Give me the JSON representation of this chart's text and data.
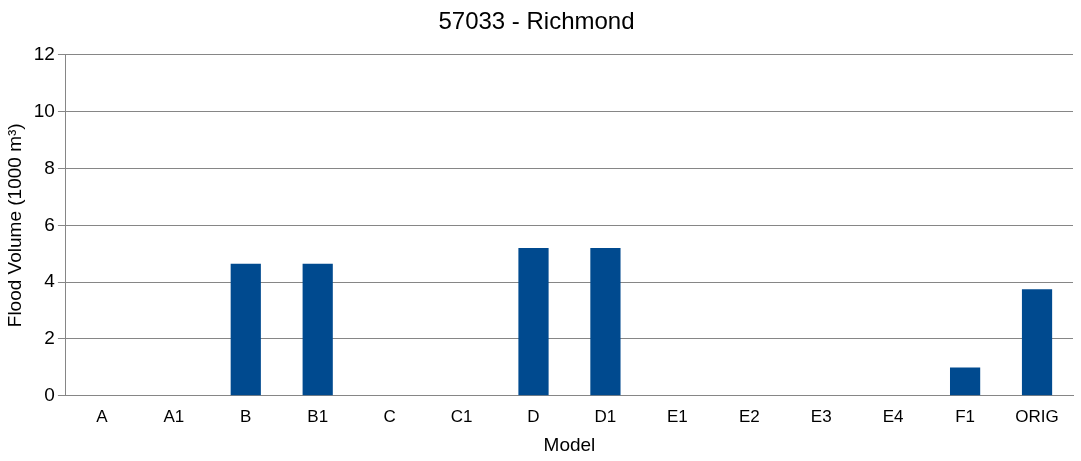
{
  "chart_data": {
    "type": "bar",
    "title": "57033 - Richmond",
    "xlabel": "Model",
    "ylabel": "Flood Volume (1000 m³)",
    "categories": [
      "A",
      "A1",
      "B",
      "B1",
      "C",
      "C1",
      "D",
      "D1",
      "E1",
      "E2",
      "E3",
      "E4",
      "F1",
      "ORIG"
    ],
    "values": [
      0,
      0,
      4.65,
      4.65,
      0,
      0,
      5.2,
      5.2,
      0,
      0,
      0,
      0,
      1.0,
      3.75
    ],
    "color": "#004a8f",
    "ylim": [
      0,
      12
    ],
    "yticks": [
      0,
      2,
      4,
      6,
      8,
      10,
      12
    ],
    "grid": "y",
    "legend": false
  }
}
